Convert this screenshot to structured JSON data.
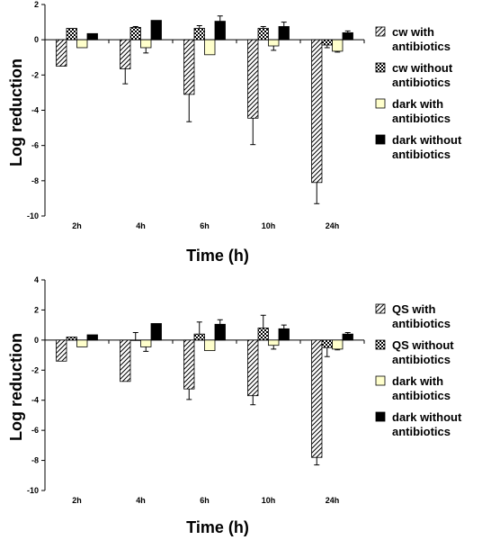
{
  "chart_data": [
    {
      "type": "bar",
      "xlabel": "Time (h)",
      "ylabel": "Log reduction",
      "ylim": [
        -10,
        2
      ],
      "yticks": [
        2,
        0,
        -2,
        -4,
        -6,
        -8,
        -10
      ],
      "categories": [
        "2h",
        "4h",
        "6h",
        "10h",
        "24h"
      ],
      "grid": false,
      "legend_position": "right",
      "series": [
        {
          "name": "cw with antibiotics",
          "legend_lines": [
            "cw with",
            "antibiotics"
          ],
          "pattern": "diagonal",
          "fill": "#ffffff",
          "values": [
            -1.5,
            -1.65,
            -3.1,
            -4.45,
            -8.1
          ],
          "errors": [
            0.0,
            0.85,
            1.55,
            1.5,
            1.2
          ]
        },
        {
          "name": "cw without antibiotics",
          "legend_lines": [
            "cw without",
            "antibiotics"
          ],
          "pattern": "checker",
          "fill": "#ffffff",
          "values": [
            0.65,
            0.7,
            0.65,
            0.65,
            -0.3
          ],
          "errors": [
            0.0,
            0.05,
            0.15,
            0.1,
            0.15
          ]
        },
        {
          "name": "dark with antibiotics",
          "legend_lines": [
            "dark with",
            "antibiotics"
          ],
          "pattern": "solid",
          "fill": "#ffffcc",
          "values": [
            -0.45,
            -0.45,
            -0.85,
            -0.35,
            -0.65
          ],
          "errors": [
            0.0,
            0.3,
            0.0,
            0.25,
            0.05
          ]
        },
        {
          "name": "dark without antibiotics",
          "legend_lines": [
            "dark without",
            "antibiotics"
          ],
          "pattern": "solid",
          "fill": "#000000",
          "values": [
            0.35,
            1.1,
            1.05,
            0.75,
            0.4
          ],
          "errors": [
            0.0,
            0.0,
            0.3,
            0.25,
            0.1
          ]
        }
      ]
    },
    {
      "type": "bar",
      "xlabel": "Time (h)",
      "ylabel": "Log reduction",
      "ylim": [
        -10,
        4
      ],
      "yticks": [
        4,
        2,
        0,
        -2,
        -4,
        -6,
        -8,
        -10
      ],
      "categories": [
        "2h",
        "4h",
        "6h",
        "10h",
        "24h"
      ],
      "grid": false,
      "legend_position": "right",
      "series": [
        {
          "name": "QS with antibiotics",
          "legend_lines": [
            "QS with",
            "antibiotics"
          ],
          "pattern": "diagonal",
          "fill": "#ffffff",
          "values": [
            -1.4,
            -2.75,
            -3.25,
            -3.7,
            -7.8
          ],
          "errors": [
            0.0,
            0.0,
            0.7,
            0.6,
            0.5
          ]
        },
        {
          "name": "QS without antibiotics",
          "legend_lines": [
            "QS without",
            "antibiotics"
          ],
          "pattern": "checker",
          "fill": "#ffffff",
          "values": [
            0.2,
            0.0,
            0.4,
            0.8,
            -0.5
          ],
          "errors": [
            0.0,
            0.5,
            0.8,
            0.85,
            0.6
          ]
        },
        {
          "name": "dark with antibiotics",
          "legend_lines": [
            "dark with",
            "antibiotics"
          ],
          "pattern": "solid",
          "fill": "#ffffcc",
          "values": [
            -0.45,
            -0.45,
            -0.7,
            -0.35,
            -0.6
          ],
          "errors": [
            0.0,
            0.3,
            0.0,
            0.25,
            0.05
          ]
        },
        {
          "name": "dark without antibiotics",
          "legend_lines": [
            "dark without",
            "antibiotics"
          ],
          "pattern": "solid",
          "fill": "#000000",
          "values": [
            0.35,
            1.1,
            1.05,
            0.75,
            0.4
          ],
          "errors": [
            0.0,
            0.0,
            0.3,
            0.25,
            0.1
          ]
        }
      ]
    }
  ]
}
